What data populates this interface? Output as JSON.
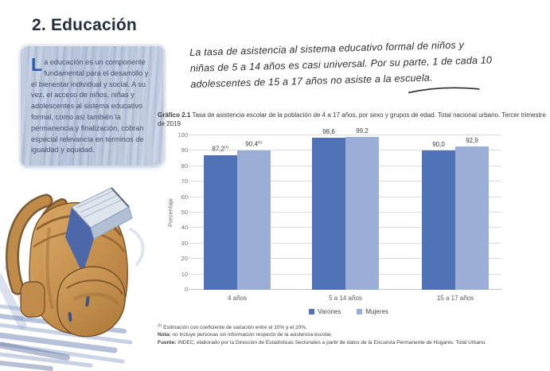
{
  "page": {
    "title": "2. Educación"
  },
  "intro": {
    "dropcap": "L",
    "text": "a educación es un componente fundamental para el desarrollo y el bienestar individual y social. A su vez, el acceso de niños, niñas y adolescentes al sistema educativo formal, como así también la permanencia y finalización, cobran especial relevancia en términos de igualdad y equidad."
  },
  "annotation": {
    "lines": [
      "La tasa de asistencia al sistema educativo formal de niños y",
      "niñas de 5 a 14 años es casi universal. Por su parte, 1 de cada 10",
      "adolescentes de 15 a 17 años no asiste a la escuela."
    ]
  },
  "illustration": {
    "name": "backpack-with-book-watercolor"
  },
  "chart": {
    "caption_bold": "Gráfico 2.1",
    "caption_text": " Tasa de asistencia escolar de la población de 4 a 17 años, por sexo y grupos de edad. Total nacional urbano. Tercer trimestre de 2019",
    "footnote_sup": "(1)",
    "footnote_text": " Estimación con coeficiente de variación entre el 10% y el 20%.",
    "note_bold": "Nota:",
    "note_text": " no incluye personas sin información respecto de la asistencia escolar.",
    "source_bold": "Fuente:",
    "source_text": " INDEC, elaborado por la Dirección de Estadísticas Sectoriales a partir de datos de la Encuesta Permanente de Hogares. Total Urbano."
  },
  "chart_data": {
    "type": "bar",
    "title": "Tasa de asistencia escolar de la población de 4 a 17 años, por sexo y grupos de edad. Total nacional urbano. Tercer trimestre de 2019",
    "categories": [
      "4 años",
      "5 a 14 años",
      "15 a 17 años"
    ],
    "series": [
      {
        "name": "Varones",
        "color": "#5073b7",
        "values": [
          87.2,
          98.6,
          90.0
        ],
        "labels": [
          "87,2",
          "98,6",
          "90,0"
        ],
        "label_sups": [
          "(1)",
          "",
          ""
        ]
      },
      {
        "name": "Mujeres",
        "color": "#9aaed8",
        "values": [
          90.4,
          99.2,
          92.9
        ],
        "labels": [
          "90,4",
          "99,2",
          "92,9"
        ],
        "label_sups": [
          "(1)",
          "",
          ""
        ]
      }
    ],
    "ylabel": "Porcentaje",
    "ylim": [
      0,
      100
    ],
    "ytick_step": 10,
    "grid": true,
    "legend_position": "bottom"
  }
}
